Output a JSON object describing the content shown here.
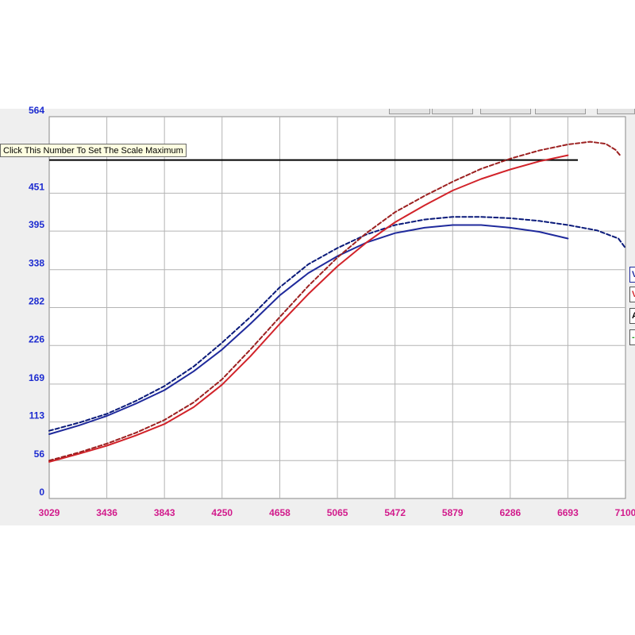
{
  "tooltip": "Click This Number To Set The Scale Maximum",
  "chart_data": {
    "type": "line",
    "x_ticks": [
      "3029",
      "3436",
      "3843",
      "4250",
      "4658",
      "5065",
      "5472",
      "5879",
      "6286",
      "6693",
      "7100"
    ],
    "y_ticks": [
      "0",
      "56",
      "113",
      "169",
      "226",
      "282",
      "338",
      "395",
      "451",
      "564"
    ],
    "xlim": [
      3029,
      7100
    ],
    "ylim": [
      0,
      564
    ],
    "grid": true,
    "reference_line_y": 500,
    "series": [
      {
        "color": "#1f2a9c",
        "dash": "solid",
        "points": [
          [
            3029,
            95
          ],
          [
            3240,
            108
          ],
          [
            3436,
            122
          ],
          [
            3640,
            140
          ],
          [
            3843,
            160
          ],
          [
            4050,
            188
          ],
          [
            4250,
            220
          ],
          [
            4450,
            258
          ],
          [
            4658,
            300
          ],
          [
            4860,
            333
          ],
          [
            5065,
            358
          ],
          [
            5270,
            378
          ],
          [
            5472,
            392
          ],
          [
            5680,
            400
          ],
          [
            5879,
            404
          ],
          [
            6080,
            404
          ],
          [
            6286,
            400
          ],
          [
            6490,
            394
          ],
          [
            6693,
            384
          ]
        ]
      },
      {
        "color": "#0a1a7a",
        "dash": "dashed",
        "points": [
          [
            3029,
            100
          ],
          [
            3240,
            112
          ],
          [
            3436,
            125
          ],
          [
            3640,
            144
          ],
          [
            3843,
            166
          ],
          [
            4050,
            195
          ],
          [
            4250,
            230
          ],
          [
            4450,
            268
          ],
          [
            4658,
            312
          ],
          [
            4860,
            346
          ],
          [
            5065,
            370
          ],
          [
            5270,
            390
          ],
          [
            5472,
            404
          ],
          [
            5680,
            412
          ],
          [
            5879,
            416
          ],
          [
            6080,
            416
          ],
          [
            6286,
            414
          ],
          [
            6490,
            410
          ],
          [
            6693,
            404
          ],
          [
            6900,
            396
          ],
          [
            7050,
            384
          ],
          [
            7100,
            370
          ]
        ]
      },
      {
        "color": "#d2232a",
        "dash": "solid",
        "points": [
          [
            3029,
            54
          ],
          [
            3240,
            66
          ],
          [
            3436,
            78
          ],
          [
            3640,
            93
          ],
          [
            3843,
            110
          ],
          [
            4050,
            135
          ],
          [
            4250,
            168
          ],
          [
            4450,
            210
          ],
          [
            4658,
            258
          ],
          [
            4860,
            302
          ],
          [
            5065,
            343
          ],
          [
            5270,
            378
          ],
          [
            5472,
            408
          ],
          [
            5680,
            433
          ],
          [
            5879,
            455
          ],
          [
            6080,
            472
          ],
          [
            6286,
            486
          ],
          [
            6490,
            498
          ],
          [
            6693,
            507
          ]
        ]
      },
      {
        "color": "#9c2020",
        "dash": "dashed",
        "points": [
          [
            3029,
            56
          ],
          [
            3240,
            68
          ],
          [
            3436,
            81
          ],
          [
            3640,
            97
          ],
          [
            3843,
            116
          ],
          [
            4050,
            142
          ],
          [
            4250,
            176
          ],
          [
            4450,
            220
          ],
          [
            4658,
            268
          ],
          [
            4860,
            314
          ],
          [
            5065,
            356
          ],
          [
            5270,
            392
          ],
          [
            5472,
            423
          ],
          [
            5680,
            447
          ],
          [
            5879,
            468
          ],
          [
            6080,
            487
          ],
          [
            6286,
            502
          ],
          [
            6490,
            514
          ],
          [
            6693,
            523
          ],
          [
            6850,
            527
          ],
          [
            6960,
            524
          ],
          [
            7030,
            515
          ],
          [
            7070,
            505
          ]
        ]
      }
    ]
  }
}
